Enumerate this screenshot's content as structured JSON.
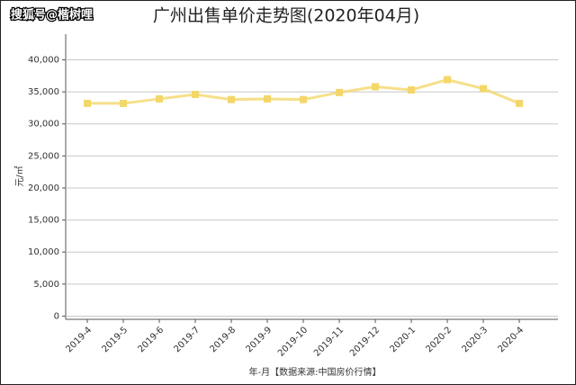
{
  "watermark": "搜狐号@楷树哩",
  "chart_data": {
    "type": "line",
    "title": "广州出售单价走势图(2020年04月)",
    "y_label": "元/㎡",
    "x_label": "年-月【数据来源:中国房价行情】",
    "categories": [
      "2019-4",
      "2019-5",
      "2019-6",
      "2019-7",
      "2019-8",
      "2019-9",
      "2019-10",
      "2019-11",
      "2019-12",
      "2020-1",
      "2020-2",
      "2020-3",
      "2020-4"
    ],
    "series": [
      {
        "name": "出售单价",
        "color": "#f3d76b",
        "values": [
          33200,
          33200,
          33900,
          34600,
          33800,
          33900,
          33800,
          34900,
          35800,
          35300,
          36900,
          35500,
          33200
        ]
      }
    ],
    "ylim": [
      -500,
      44000
    ],
    "yticks": [
      0,
      {
        "value": 5000,
        "label": "5,000"
      },
      {
        "value": 10000,
        "label": "10,000"
      },
      {
        "value": 15000,
        "label": "15,000"
      },
      {
        "value": 20000,
        "label": "20,000"
      },
      {
        "value": 25000,
        "label": "25,000"
      },
      {
        "value": 30000,
        "label": "30,000"
      },
      {
        "value": 35000,
        "label": "35,000"
      },
      {
        "value": 40000,
        "label": "40,000"
      }
    ],
    "grid": true
  }
}
